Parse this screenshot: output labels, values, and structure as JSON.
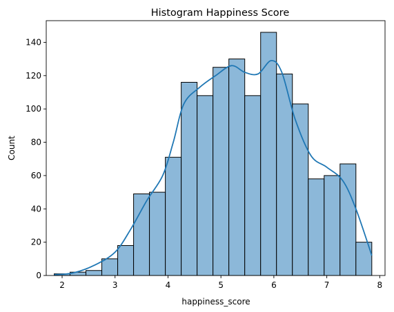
{
  "chart_data": {
    "type": "bar",
    "subtype": "histogram-with-kde",
    "title": "Histogram Happiness Score",
    "xlabel": "happiness_score",
    "ylabel": "Count",
    "xlim": [
      1.7,
      8.1
    ],
    "ylim": [
      0,
      153
    ],
    "xticks": [
      2,
      3,
      4,
      5,
      6,
      7,
      8
    ],
    "yticks": [
      0,
      20,
      40,
      60,
      80,
      100,
      120,
      140
    ],
    "bin_width": 0.3,
    "bins": [
      {
        "start": 1.85,
        "count": 1
      },
      {
        "start": 2.15,
        "count": 2
      },
      {
        "start": 2.45,
        "count": 3
      },
      {
        "start": 2.75,
        "count": 10
      },
      {
        "start": 3.05,
        "count": 18
      },
      {
        "start": 3.35,
        "count": 49
      },
      {
        "start": 3.65,
        "count": 50
      },
      {
        "start": 3.95,
        "count": 71
      },
      {
        "start": 4.25,
        "count": 116
      },
      {
        "start": 4.55,
        "count": 108
      },
      {
        "start": 4.85,
        "count": 125
      },
      {
        "start": 5.15,
        "count": 130
      },
      {
        "start": 5.45,
        "count": 108
      },
      {
        "start": 5.75,
        "count": 146
      },
      {
        "start": 6.05,
        "count": 121
      },
      {
        "start": 6.35,
        "count": 103
      },
      {
        "start": 6.65,
        "count": 58
      },
      {
        "start": 6.95,
        "count": 60
      },
      {
        "start": 7.25,
        "count": 67
      },
      {
        "start": 7.55,
        "count": 20
      }
    ],
    "kde": {
      "x": [
        1.85,
        2.2,
        2.6,
        3.0,
        3.3,
        3.6,
        3.9,
        4.1,
        4.3,
        4.6,
        4.9,
        5.2,
        5.45,
        5.7,
        5.95,
        6.15,
        6.4,
        6.7,
        7.0,
        7.3,
        7.55,
        7.85
      ],
      "y": [
        0.5,
        1.5,
        6,
        14,
        28,
        45,
        60,
        80,
        103,
        113,
        120,
        126,
        122,
        121,
        129,
        122,
        94,
        72,
        65,
        57,
        40,
        12
      ]
    },
    "colors": {
      "bar_fill": "#8cb8d9",
      "bar_edge": "#000000",
      "kde_line": "#1f77b4"
    },
    "grid": false,
    "legend": "none"
  }
}
